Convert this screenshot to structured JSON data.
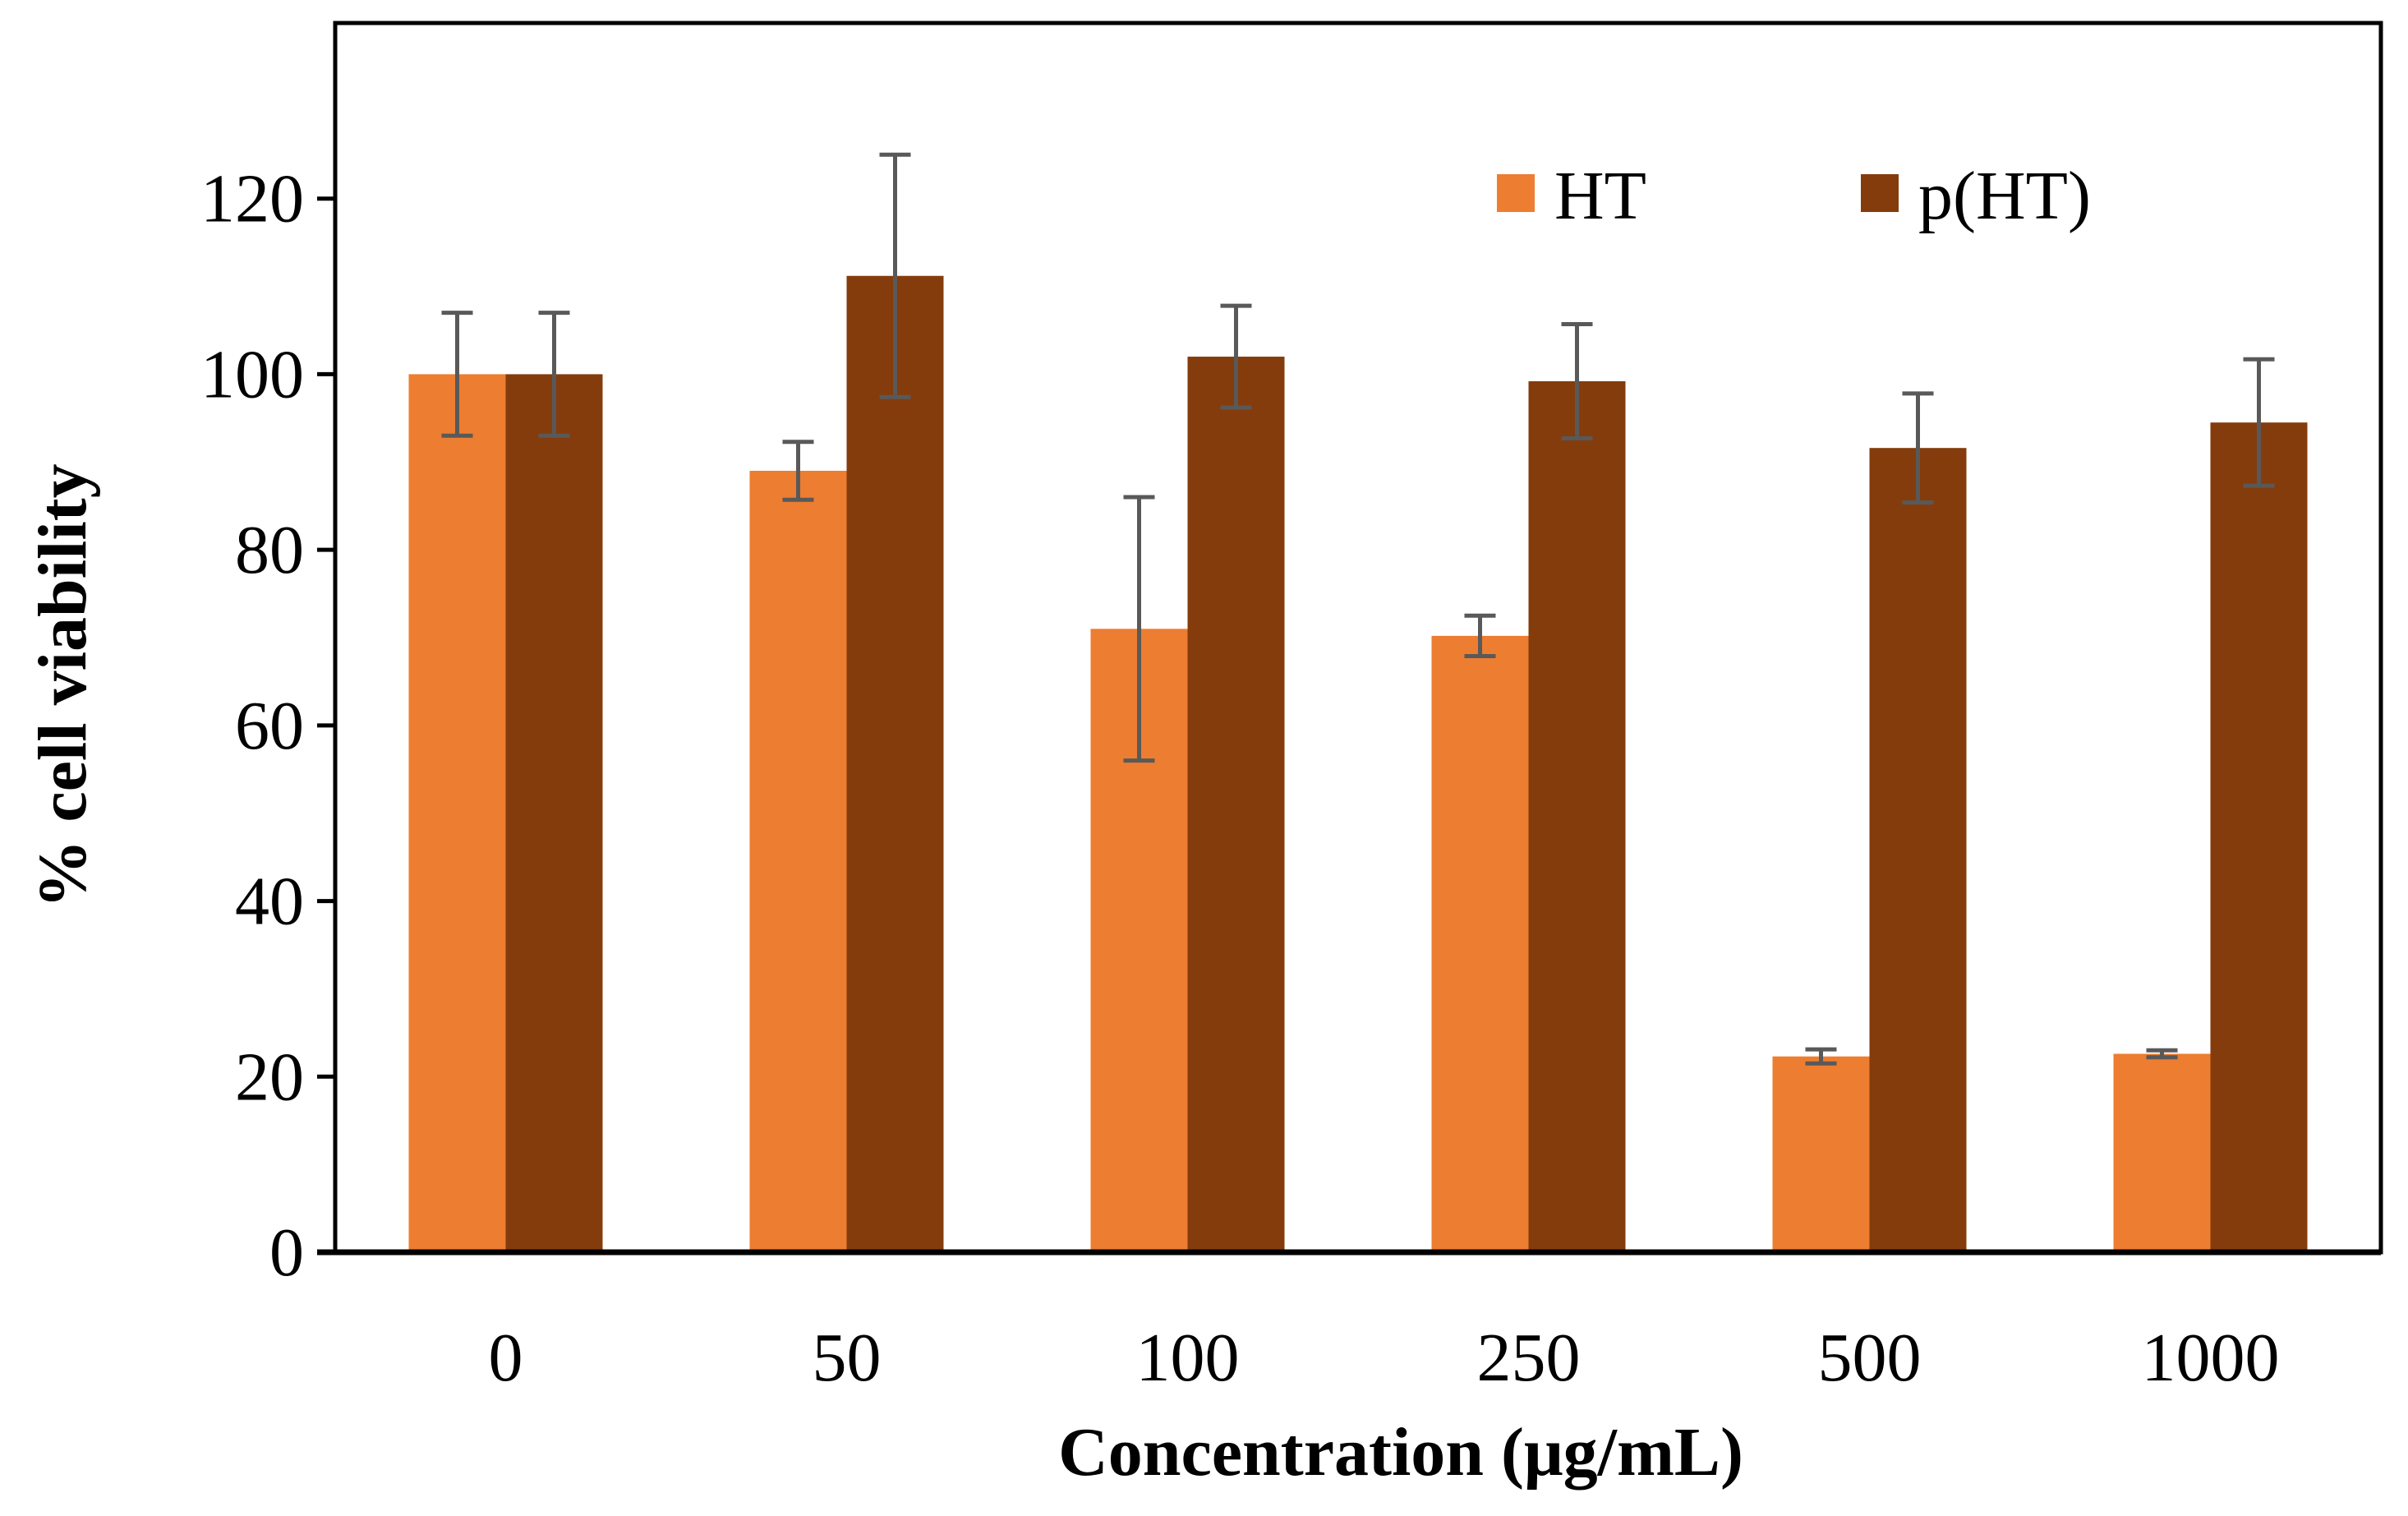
{
  "chart_data": {
    "type": "bar",
    "title": "",
    "xlabel": "Concentration (μg/mL)",
    "ylabel": "% cell viability",
    "categories": [
      "0",
      "50",
      "100",
      "250",
      "500",
      "1000"
    ],
    "ylim": [
      0,
      140
    ],
    "yticks": [
      0,
      20,
      40,
      60,
      80,
      100,
      120
    ],
    "ytick_labels": [
      "0",
      "20",
      "40",
      "60",
      "80",
      "100",
      "120"
    ],
    "grid": false,
    "legend_position": "top-right",
    "series": [
      {
        "name": "HT",
        "color": "#ED7D31",
        "values": [
          100,
          89,
          71,
          70.2,
          22.3,
          22.6
        ],
        "errors": [
          7,
          3.3,
          15,
          2.3,
          0.8,
          0.4
        ]
      },
      {
        "name": "p(HT)",
        "color": "#843C0C",
        "values": [
          100,
          111.2,
          102,
          99.2,
          91.6,
          94.5
        ],
        "errors": [
          7,
          13.8,
          5.8,
          6.5,
          6.2,
          7.2
        ]
      }
    ],
    "error_bar_color": "#595959"
  }
}
